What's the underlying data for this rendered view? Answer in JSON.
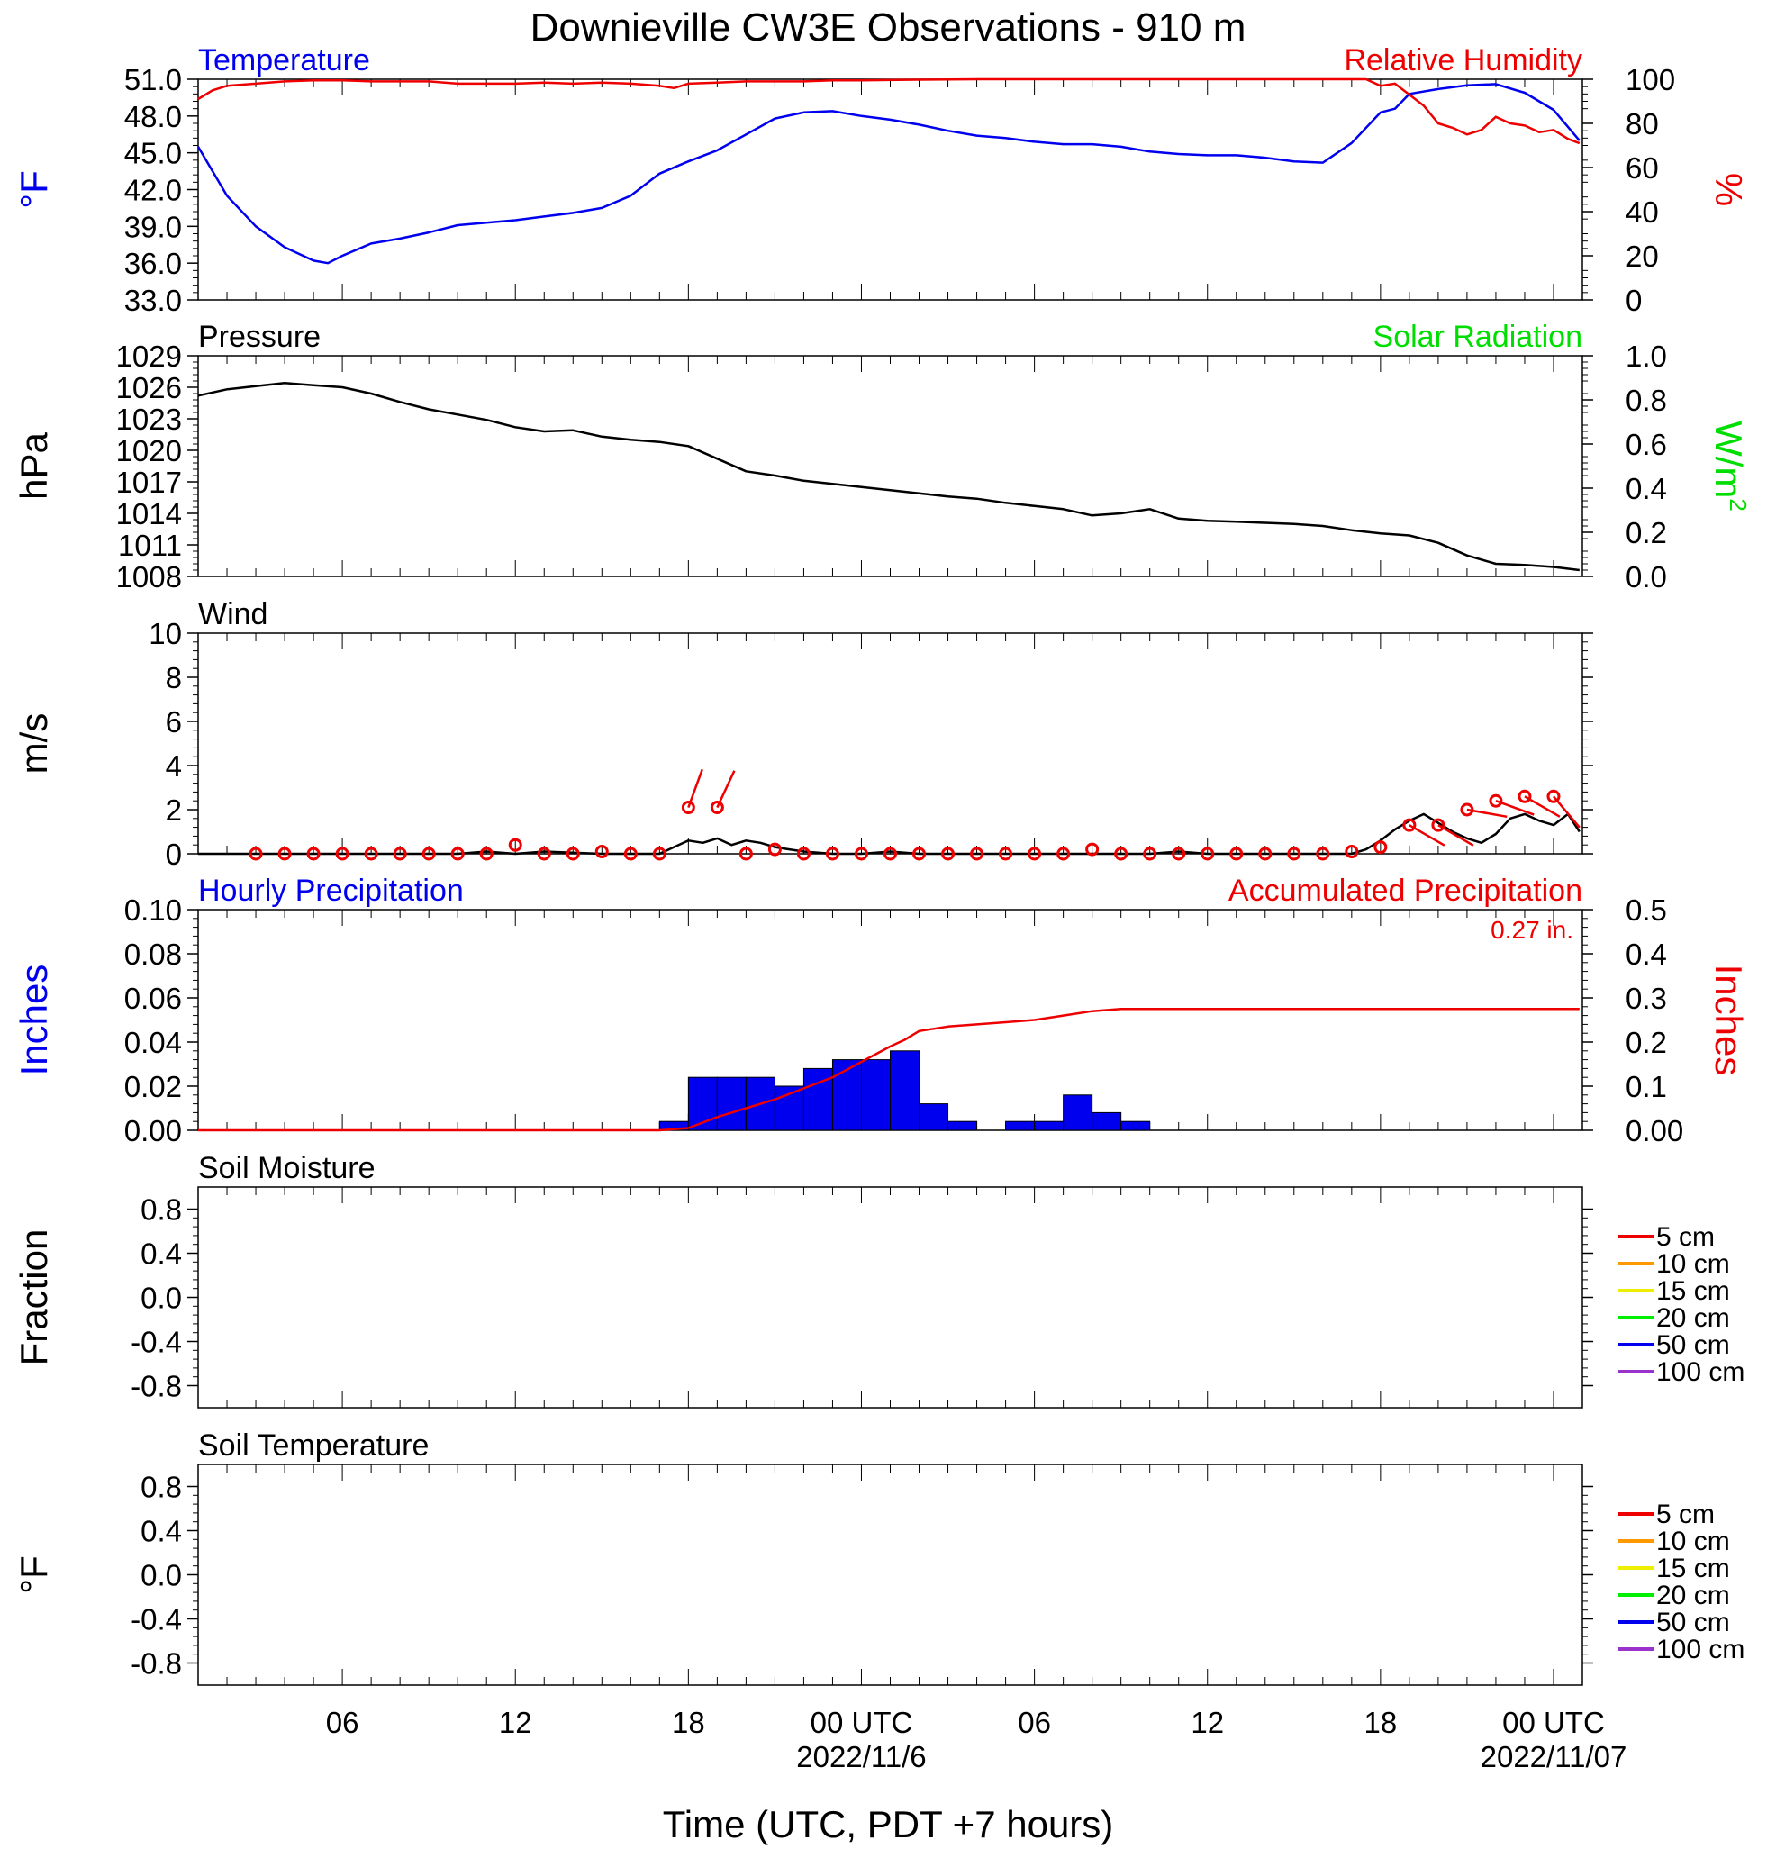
{
  "title": "Downieville CW3E Observations - 910 m",
  "x_axis": {
    "label": "Time (UTC, PDT +7 hours)",
    "start_hour": 1,
    "end_hour": 49,
    "ticks": [
      {
        "hour": 6,
        "label": "06",
        "sub": ""
      },
      {
        "hour": 12,
        "label": "12",
        "sub": ""
      },
      {
        "hour": 18,
        "label": "18",
        "sub": ""
      },
      {
        "hour": 24,
        "label": "00 UTC",
        "sub": "2022/11/6"
      },
      {
        "hour": 30,
        "label": "06",
        "sub": ""
      },
      {
        "hour": 36,
        "label": "12",
        "sub": ""
      },
      {
        "hour": 42,
        "label": "18",
        "sub": ""
      },
      {
        "hour": 48,
        "label": "00 UTC",
        "sub": "2022/11/07"
      }
    ]
  },
  "colors": {
    "temperature": "#0000ee",
    "humidity": "#ee0000",
    "pressure": "#000000",
    "solar": "#00dd00",
    "hourly_precip": "#0000ee",
    "accum_precip": "#ee0000",
    "wind_speed": "#000000",
    "wind_barb": "#ee0000"
  },
  "chart_data": [
    {
      "id": "temp_rh",
      "type": "line",
      "title_left": "Temperature",
      "title_right": "Relative Humidity",
      "ylabel_left": "°F",
      "ylabel_right": "%",
      "ylim_left": [
        33.0,
        51.0
      ],
      "yticks_left": [
        "33.0",
        "36.0",
        "39.0",
        "42.0",
        "45.0",
        "48.0",
        "51.0"
      ],
      "ylim_right": [
        0,
        100
      ],
      "yticks_right": [
        "0",
        "20",
        "40",
        "60",
        "80",
        "100"
      ],
      "series": [
        {
          "name": "Temperature",
          "axis": "left",
          "color": "#0000ee",
          "x": [
            1,
            2,
            3,
            4,
            5,
            5.5,
            6,
            7,
            8,
            9,
            10,
            11,
            12,
            13,
            14,
            15,
            16,
            17,
            18,
            19,
            20,
            21,
            22,
            23,
            24,
            25,
            26,
            27,
            28,
            29,
            30,
            31,
            32,
            33,
            34,
            35,
            36,
            37,
            38,
            39,
            40,
            41,
            42,
            42.5,
            43,
            44,
            45,
            46,
            47,
            48,
            48.9
          ],
          "y": [
            45.5,
            41.5,
            39.0,
            37.3,
            36.2,
            36.0,
            36.6,
            37.6,
            38.0,
            38.5,
            39.1,
            39.3,
            39.5,
            39.8,
            40.1,
            40.5,
            41.5,
            43.3,
            44.3,
            45.2,
            46.5,
            47.8,
            48.3,
            48.4,
            48.0,
            47.7,
            47.3,
            46.8,
            46.4,
            46.2,
            45.9,
            45.7,
            45.7,
            45.5,
            45.1,
            44.9,
            44.8,
            44.8,
            44.6,
            44.3,
            44.2,
            45.8,
            48.3,
            48.6,
            49.8,
            50.2,
            50.5,
            50.6,
            49.9,
            48.5,
            46.0
          ]
        },
        {
          "name": "Relative Humidity",
          "axis": "right",
          "color": "#ee0000",
          "x": [
            1,
            1.5,
            2,
            3,
            4,
            5,
            6,
            7,
            8,
            9,
            10,
            11,
            12,
            13,
            14,
            15,
            16,
            17,
            17.5,
            18,
            19,
            20,
            21,
            22,
            23,
            24,
            26,
            28,
            30,
            32,
            34,
            36,
            38,
            40,
            41,
            41.5,
            42,
            42.5,
            43,
            43.5,
            44,
            44.5,
            45,
            45.5,
            46,
            46.5,
            47,
            47.5,
            48,
            48.5,
            48.9
          ],
          "y": [
            91,
            95,
            97,
            98,
            99,
            99.5,
            99.5,
            99,
            99,
            99,
            98,
            98,
            98,
            98.5,
            98,
            98.5,
            98,
            97,
            96,
            98,
            98.5,
            99,
            99,
            99,
            99.5,
            99.5,
            99.8,
            100,
            100,
            100,
            100,
            100,
            100,
            100,
            100,
            100,
            97,
            98,
            93,
            88,
            80,
            78,
            75,
            77,
            83,
            80,
            79,
            76,
            77,
            73,
            71
          ]
        }
      ]
    },
    {
      "id": "pressure",
      "type": "line",
      "title_left": "Pressure",
      "title_right": "Solar Radiation",
      "ylabel_left": "hPa",
      "ylabel_right_base": "W/m",
      "ylabel_right_sup": "2",
      "ylim_left": [
        1008,
        1029
      ],
      "yticks_left": [
        "1008",
        "1011",
        "1014",
        "1017",
        "1020",
        "1023",
        "1026",
        "1029"
      ],
      "ylim_right": [
        0.0,
        1.0
      ],
      "yticks_right": [
        "0.0",
        "0.2",
        "0.4",
        "0.6",
        "0.8",
        "1.0"
      ],
      "series": [
        {
          "name": "Pressure",
          "axis": "left",
          "color": "#000000",
          "x": [
            1,
            2,
            3,
            4,
            5,
            6,
            7,
            8,
            9,
            10,
            11,
            12,
            13,
            14,
            15,
            16,
            17,
            18,
            19,
            20,
            21,
            22,
            23,
            24,
            25,
            26,
            27,
            28,
            29,
            30,
            31,
            32,
            33,
            34,
            35,
            36,
            37,
            38,
            39,
            40,
            41,
            42,
            43,
            44,
            45,
            46,
            47,
            48,
            48.9
          ],
          "y": [
            1025.2,
            1025.8,
            1026.1,
            1026.4,
            1026.2,
            1026.0,
            1025.4,
            1024.6,
            1023.9,
            1023.4,
            1022.9,
            1022.2,
            1021.8,
            1021.9,
            1021.3,
            1021.0,
            1020.8,
            1020.4,
            1019.2,
            1018.0,
            1017.6,
            1017.1,
            1016.8,
            1016.5,
            1016.2,
            1015.9,
            1015.6,
            1015.4,
            1015.0,
            1014.7,
            1014.4,
            1013.8,
            1014.0,
            1014.4,
            1013.5,
            1013.3,
            1013.2,
            1013.1,
            1013.0,
            1012.8,
            1012.4,
            1012.1,
            1011.9,
            1011.2,
            1010.0,
            1009.2,
            1009.1,
            1008.9,
            1008.6
          ]
        }
      ]
    },
    {
      "id": "wind",
      "type": "line",
      "title_left": "Wind",
      "ylabel_left": "m/s",
      "ylim_left": [
        0,
        10
      ],
      "yticks_left": [
        "0",
        "2",
        "4",
        "6",
        "8",
        "10"
      ],
      "series": [
        {
          "name": "Wind speed",
          "axis": "left",
          "color": "#000000",
          "x": [
            1,
            10,
            11,
            12,
            13,
            15,
            17,
            17.5,
            18,
            18.5,
            19,
            19.5,
            20,
            20.5,
            21,
            21.5,
            22,
            23,
            24,
            25,
            26,
            34,
            35,
            36,
            41,
            41.5,
            42,
            42.5,
            43,
            43.5,
            44,
            44.5,
            45,
            45.5,
            46,
            46.5,
            47,
            47.5,
            48,
            48.5,
            48.9
          ],
          "y": [
            0,
            0,
            0.1,
            0,
            0.1,
            0,
            0,
            0.3,
            0.6,
            0.5,
            0.7,
            0.4,
            0.6,
            0.5,
            0.3,
            0.2,
            0.1,
            0,
            0,
            0.1,
            0,
            0,
            0.1,
            0,
            0,
            0.2,
            0.6,
            1.1,
            1.5,
            1.8,
            1.4,
            1.0,
            0.7,
            0.5,
            0.9,
            1.6,
            1.8,
            1.5,
            1.3,
            1.8,
            1.0
          ]
        }
      ],
      "barbs": {
        "hours": [
          3,
          4,
          5,
          6,
          7,
          8,
          9,
          10,
          11,
          12,
          13,
          14,
          15,
          16,
          17,
          18,
          19,
          20,
          21,
          22,
          23,
          24,
          25,
          26,
          27,
          28,
          29,
          30,
          31,
          32,
          33,
          34,
          35,
          36,
          37,
          38,
          39,
          40,
          41,
          42,
          43,
          44,
          45,
          46,
          47,
          48
        ],
        "speeds": [
          0,
          0,
          0,
          0,
          0,
          0,
          0,
          0,
          0,
          0.4,
          0,
          0,
          0.1,
          0,
          0,
          2.1,
          2.1,
          0,
          0.2,
          0,
          0,
          0,
          0,
          0,
          0,
          0,
          0,
          0,
          0,
          0.2,
          0,
          0,
          0,
          0,
          0,
          0,
          0,
          0,
          0.1,
          0.3,
          1.3,
          1.3,
          2.0,
          2.4,
          2.6,
          2.6
        ],
        "angle_deg": [
          0,
          0,
          0,
          0,
          0,
          0,
          0,
          0,
          0,
          0,
          0,
          0,
          0,
          0,
          0,
          200,
          205,
          0,
          0,
          0,
          0,
          0,
          0,
          0,
          0,
          0,
          0,
          0,
          0,
          0,
          0,
          0,
          0,
          0,
          0,
          0,
          0,
          0,
          0,
          0,
          300,
          300,
          280,
          290,
          300,
          320
        ]
      }
    },
    {
      "id": "precip",
      "type": "bar",
      "title_left": "Hourly Precipitation",
      "title_right": "Accumulated Precipitation",
      "annotation": "0.27 in.",
      "ylabel_left": "Inches",
      "ylabel_right": "Inches",
      "ylim_left": [
        0.0,
        0.1
      ],
      "yticks_left": [
        "0.00",
        "0.02",
        "0.04",
        "0.06",
        "0.08",
        "0.10"
      ],
      "ylim_right": [
        0.0,
        0.5
      ],
      "yticks_right": [
        "0.00",
        "0.1",
        "0.2",
        "0.3",
        "0.4",
        "0.5"
      ],
      "bars": {
        "name": "Hourly Precipitation",
        "color": "#0000ee",
        "hour_start": [
          17,
          18,
          19,
          20,
          21,
          22,
          23,
          24,
          25,
          26,
          27,
          29,
          30,
          31,
          32,
          33
        ],
        "values": [
          0.004,
          0.024,
          0.024,
          0.024,
          0.02,
          0.028,
          0.032,
          0.032,
          0.036,
          0.012,
          0.004,
          0.004,
          0.004,
          0.016,
          0.008,
          0.004
        ]
      },
      "series": [
        {
          "name": "Accumulated Precipitation",
          "axis": "right",
          "color": "#ee0000",
          "x": [
            1,
            17,
            18,
            19,
            20,
            21,
            22,
            23,
            24,
            25,
            25.5,
            26,
            27,
            28,
            29,
            30,
            31,
            32,
            33,
            34,
            48.9
          ],
          "y": [
            0,
            0,
            0.005,
            0.03,
            0.05,
            0.07,
            0.095,
            0.12,
            0.155,
            0.19,
            0.205,
            0.225,
            0.235,
            0.24,
            0.245,
            0.25,
            0.26,
            0.27,
            0.275,
            0.275,
            0.275
          ]
        }
      ]
    },
    {
      "id": "soil_moisture",
      "type": "line",
      "title_left": "Soil Moisture",
      "ylabel_left": "Fraction",
      "ylim_left": [
        -1.0,
        1.0
      ],
      "yticks_left": [
        "-0.8",
        "-0.4",
        "0.0",
        "0.4",
        "0.8"
      ],
      "legend": [
        "5 cm",
        "10 cm",
        "15 cm",
        "20 cm",
        "50 cm",
        "100 cm"
      ],
      "legend_colors": [
        "#ee0000",
        "#ff9900",
        "#eeee00",
        "#00ee00",
        "#0000ee",
        "#9933cc"
      ],
      "series": []
    },
    {
      "id": "soil_temp",
      "type": "line",
      "title_left": "Soil Temperature",
      "ylabel_left": "°F",
      "ylim_left": [
        -1.0,
        1.0
      ],
      "yticks_left": [
        "-0.8",
        "-0.4",
        "0.0",
        "0.4",
        "0.8"
      ],
      "legend": [
        "5 cm",
        "10 cm",
        "15 cm",
        "20 cm",
        "50 cm",
        "100 cm"
      ],
      "legend_colors": [
        "#ee0000",
        "#ff9900",
        "#eeee00",
        "#00ee00",
        "#0000ee",
        "#9933cc"
      ],
      "series": []
    }
  ]
}
